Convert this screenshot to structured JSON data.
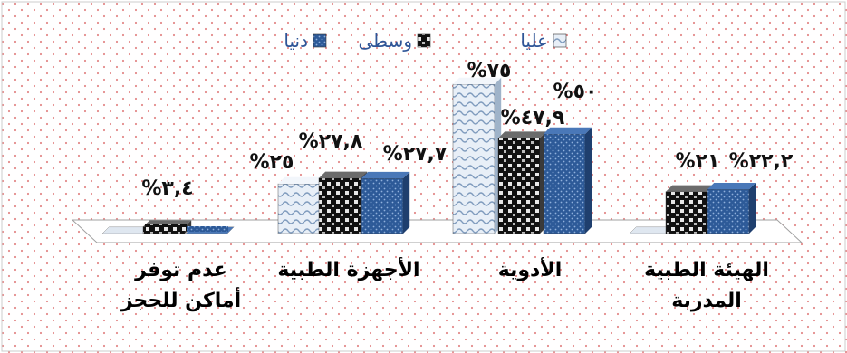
{
  "chart_data": {
    "type": "bar",
    "title": "",
    "xlabel": "",
    "ylabel": "",
    "legend_position": "top-center",
    "categories": [
      [
        "الهيئة الطبية",
        "المدربة"
      ],
      [
        "الأدوية"
      ],
      [
        "الأجهزة الطبية"
      ],
      [
        "عدم توفر",
        "أماكن للحجز"
      ]
    ],
    "series": [
      {
        "name": "عليا",
        "values": [
          0,
          75,
          25,
          0
        ],
        "labels": [
          "",
          "%٧٥",
          "%٢٥",
          ""
        ],
        "color": "#d8e4f0"
      },
      {
        "name": "وسطى",
        "values": [
          21,
          47.9,
          27.8,
          3.4
        ],
        "labels": [
          "%٢١",
          "%٤٧,٩",
          "%٢٧,٨",
          "%٣,٤"
        ],
        "color": "#1a1a1a"
      },
      {
        "name": "دنيا",
        "values": [
          22.2,
          50,
          27.7,
          0
        ],
        "labels": [
          "%٢٢,٢",
          "%٥٠",
          "%٢٧,٧",
          ""
        ],
        "color": "#2e5b9a"
      }
    ],
    "ylim": [
      0,
      80
    ],
    "grid": false,
    "direction": "rtl"
  }
}
